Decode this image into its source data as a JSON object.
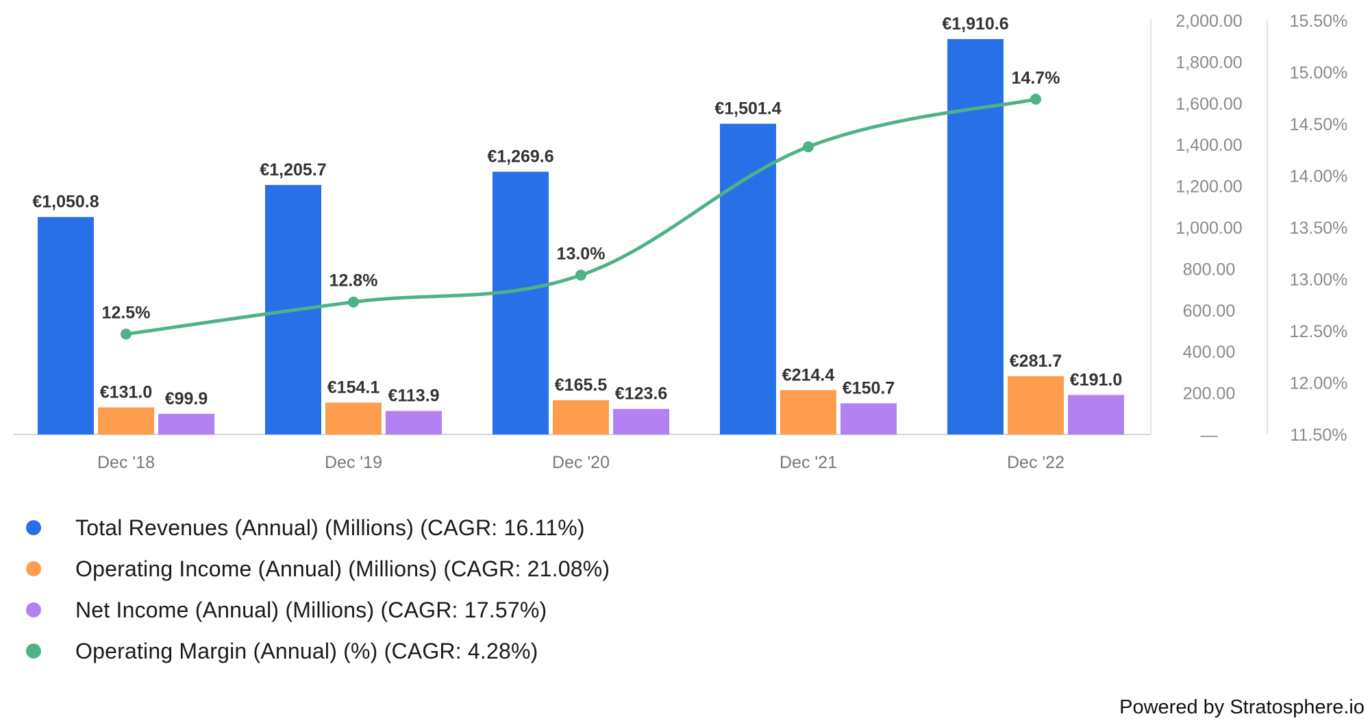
{
  "chart_data": {
    "type": "bar",
    "categories": [
      "Dec '18",
      "Dec '19",
      "Dec '20",
      "Dec '21",
      "Dec '22"
    ],
    "series": [
      {
        "name": "Total Revenues (Annual) (Millions) (CAGR: 16.11%)",
        "kind": "bar",
        "axis": "left",
        "color": "#2870E8",
        "values": [
          1050.8,
          1205.7,
          1269.6,
          1501.4,
          1910.6
        ],
        "labels": [
          "€1,050.8",
          "€1,205.7",
          "€1,269.6",
          "€1,501.4",
          "€1,910.6"
        ]
      },
      {
        "name": "Operating Income (Annual) (Millions) (CAGR: 21.08%)",
        "kind": "bar",
        "axis": "left",
        "color": "#FD9D4D",
        "values": [
          131.0,
          154.1,
          165.5,
          214.4,
          281.7
        ],
        "labels": [
          "€131.0",
          "€154.1",
          "€165.5",
          "€214.4",
          "€281.7"
        ]
      },
      {
        "name": "Net Income (Annual) (Millions) (CAGR: 17.57%)",
        "kind": "bar",
        "axis": "left",
        "color": "#B481F3",
        "values": [
          99.9,
          113.9,
          123.6,
          150.7,
          191.0
        ],
        "labels": [
          "€99.9",
          "€113.9",
          "€123.6",
          "€150.7",
          "€191.0"
        ]
      },
      {
        "name": "Operating Margin (Annual) (%) (CAGR: 4.28%)",
        "kind": "line",
        "axis": "right",
        "color": "#4DB387",
        "values": [
          12.47,
          12.78,
          13.04,
          14.28,
          14.74
        ],
        "labels": [
          "12.5%",
          "12.8%",
          "13.0%",
          "",
          "14.7%"
        ]
      }
    ],
    "y_left": {
      "min": 0,
      "max": 2000,
      "ticks": [
        "—",
        "200.00",
        "400.00",
        "600.00",
        "800.00",
        "1,000.00",
        "1,200.00",
        "1,400.00",
        "1,600.00",
        "1,800.00",
        "2,000.00"
      ]
    },
    "y_right": {
      "min": 11.5,
      "max": 15.5,
      "ticks": [
        "11.50%",
        "12.00%",
        "12.50%",
        "13.00%",
        "13.50%",
        "14.00%",
        "14.50%",
        "15.00%",
        "15.50%"
      ]
    },
    "grid": false,
    "legend_position": "bottom-left"
  },
  "footer": {
    "powered_by": "Powered by Stratosphere.io"
  }
}
